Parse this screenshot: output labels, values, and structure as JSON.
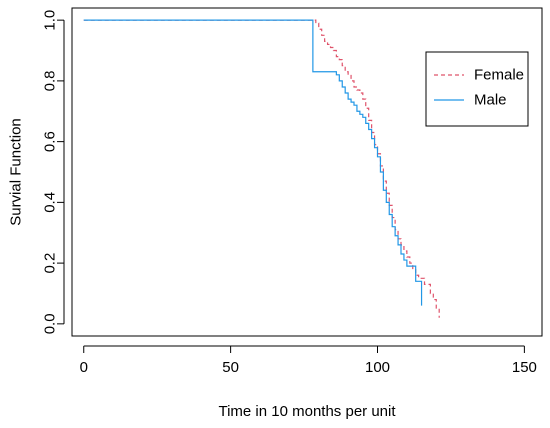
{
  "chart_data": {
    "type": "line",
    "title": "",
    "xlabel": "Time in 10 months per unit",
    "ylabel": "Survial Function",
    "xlim": [
      -4,
      156
    ],
    "ylim": [
      -0.04,
      1.04
    ],
    "x_ticks": [
      0,
      50,
      100,
      150
    ],
    "x_tick_labels": [
      "0",
      "50",
      "100",
      "150"
    ],
    "y_ticks": [
      0.0,
      0.2,
      0.4,
      0.6,
      0.8,
      1.0
    ],
    "y_tick_labels": [
      "0.0",
      "0.2",
      "0.4",
      "0.6",
      "0.8",
      "1.0"
    ],
    "grid": false,
    "legend_position": "top-right",
    "series": [
      {
        "name": "Female",
        "color": "#df536b",
        "line_style": "dashed",
        "step": true,
        "x": [
          0,
          79,
          80,
          81,
          82,
          83,
          84,
          85,
          86,
          87,
          88,
          89,
          90,
          91,
          92,
          93,
          94,
          95,
          96,
          97,
          98,
          99,
          100,
          101,
          102,
          103,
          104,
          105,
          106,
          107,
          108,
          109,
          110,
          111,
          112,
          113,
          114,
          116,
          118,
          119,
          120,
          121
        ],
        "y": [
          1.0,
          0.99,
          0.97,
          0.95,
          0.93,
          0.92,
          0.91,
          0.9,
          0.88,
          0.87,
          0.85,
          0.83,
          0.82,
          0.8,
          0.78,
          0.77,
          0.76,
          0.74,
          0.71,
          0.67,
          0.63,
          0.59,
          0.56,
          0.52,
          0.47,
          0.43,
          0.39,
          0.35,
          0.31,
          0.28,
          0.26,
          0.24,
          0.22,
          0.2,
          0.18,
          0.16,
          0.15,
          0.13,
          0.1,
          0.08,
          0.05,
          0.02
        ]
      },
      {
        "name": "Male",
        "color": "#2297e6",
        "line_style": "solid",
        "step": true,
        "x": [
          0,
          78,
          86,
          87,
          88,
          89,
          90,
          91,
          92,
          93,
          94,
          95,
          96,
          97,
          98,
          99,
          100,
          101,
          102,
          103,
          104,
          105,
          106,
          107,
          108,
          109,
          110,
          111,
          112,
          113,
          114,
          115
        ],
        "y": [
          1.0,
          0.83,
          0.82,
          0.8,
          0.78,
          0.76,
          0.74,
          0.73,
          0.72,
          0.7,
          0.69,
          0.68,
          0.66,
          0.64,
          0.61,
          0.58,
          0.55,
          0.5,
          0.44,
          0.4,
          0.36,
          0.32,
          0.29,
          0.26,
          0.23,
          0.21,
          0.19,
          0.19,
          0.19,
          0.14,
          0.14,
          0.06
        ]
      }
    ]
  }
}
